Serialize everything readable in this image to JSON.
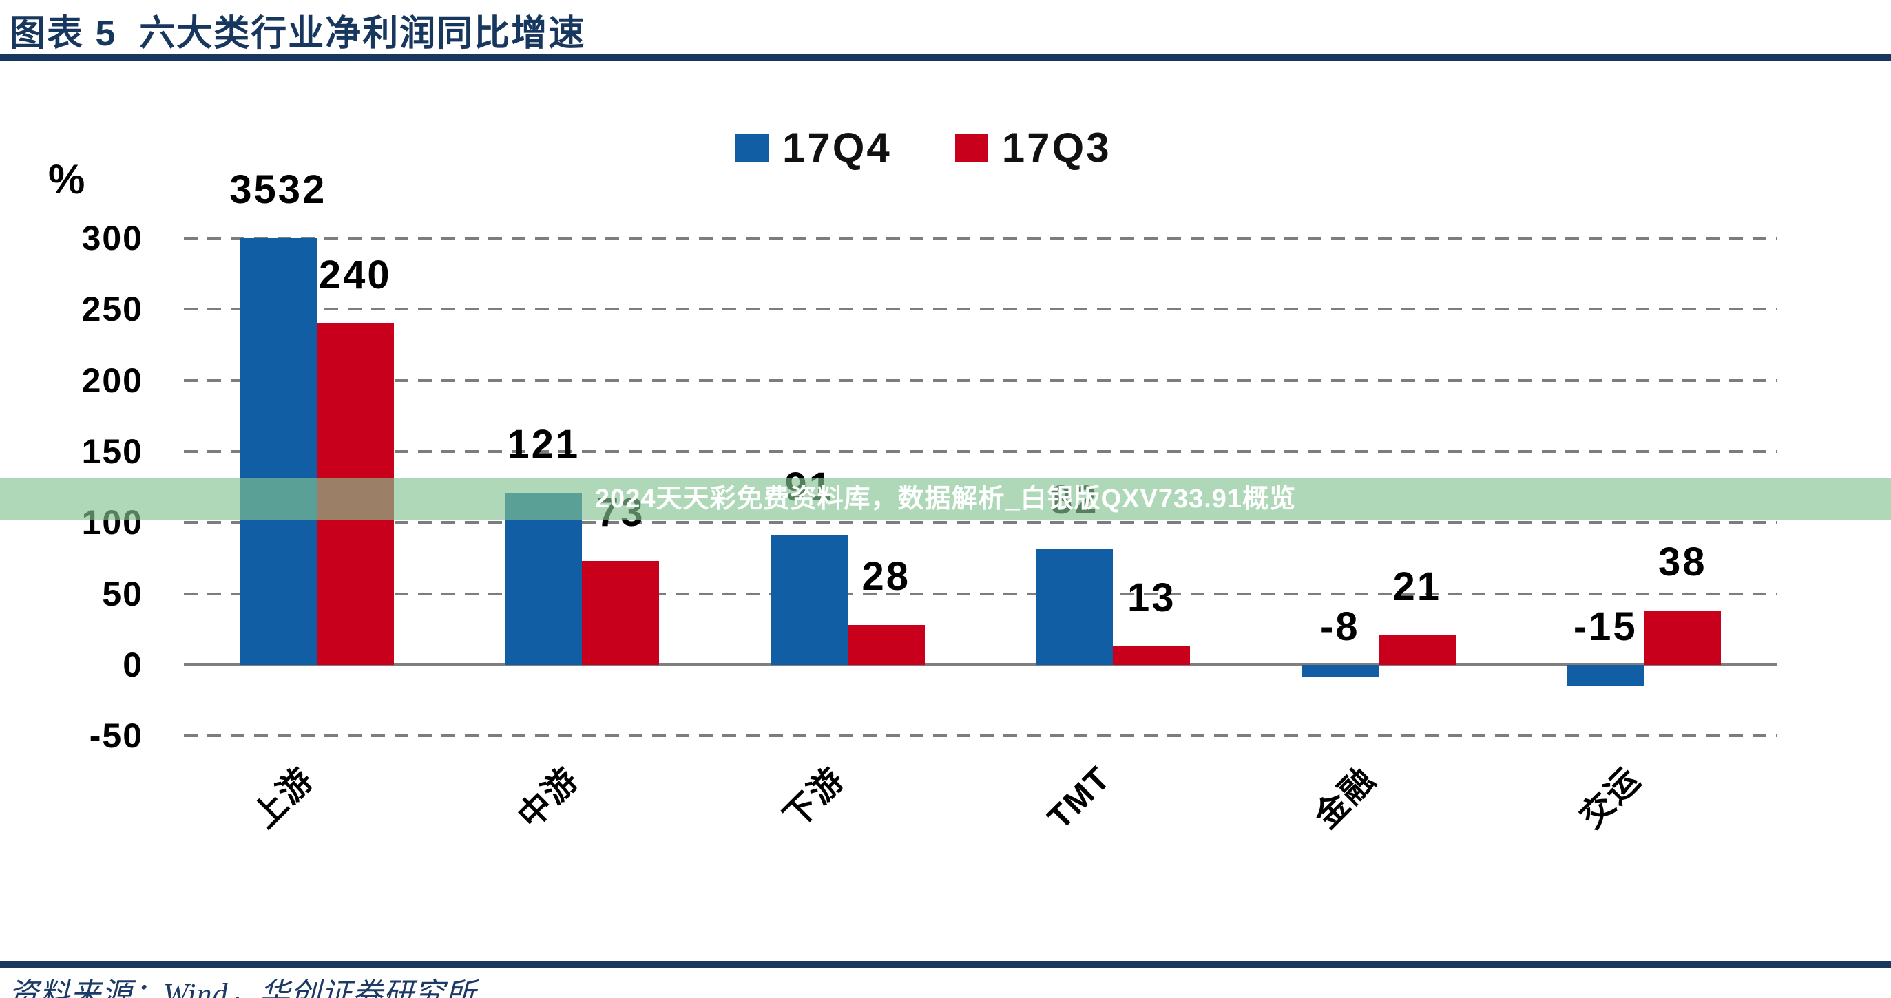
{
  "header": {
    "title": "图表 5  六大类行业净利润同比增速"
  },
  "chart_data": {
    "type": "bar",
    "title": "六大类行业净利润同比增速",
    "unit_label": "%",
    "categories": [
      "上游",
      "中游",
      "下游",
      "TMT",
      "金融",
      "交运"
    ],
    "series": [
      {
        "name": "17Q4",
        "color": "#115EA4",
        "values": [
          3532,
          121,
          91,
          82,
          -8,
          -15
        ]
      },
      {
        "name": "17Q3",
        "color": "#C9001B",
        "values": [
          240,
          73,
          28,
          13,
          21,
          38
        ]
      }
    ],
    "yticks": [
      300,
      250,
      200,
      150,
      100,
      50,
      0,
      -50
    ],
    "ylim": [
      -50,
      300
    ],
    "display_cap": 300,
    "grid": "dashed-horizontal",
    "legend_position": "top-center",
    "xlabel": "",
    "ylabel": "%"
  },
  "watermark": {
    "text": "2024天天彩免费资料库，数据解析_白银版QXV733.91概览"
  },
  "footer": {
    "source": "资料来源：Wind，华创证券研究所"
  },
  "colors": {
    "accent_navy": "#17375E",
    "series_blue": "#115EA4",
    "series_red": "#C9001B",
    "watermark_green": "rgba(130,195,145,0.65)",
    "gridline_gray": "#7d7d7d"
  }
}
